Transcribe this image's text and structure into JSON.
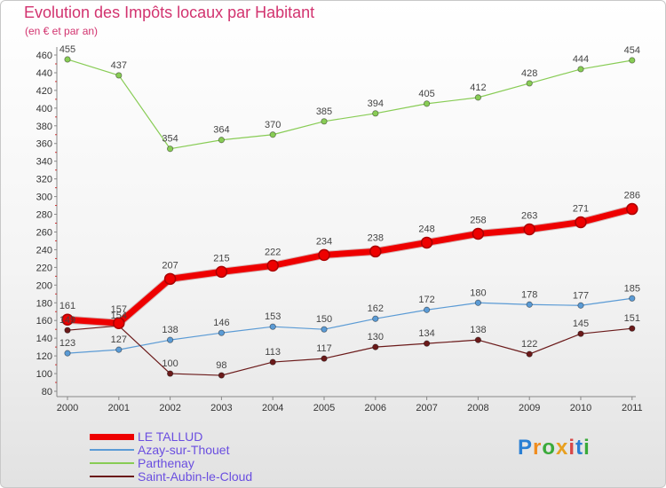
{
  "chart_data": {
    "type": "line",
    "title": "Evolution des Impôts locaux par Habitant",
    "subtitle": "(en € et par an)",
    "xlabel": "",
    "ylabel": "",
    "x": [
      "2000",
      "2001",
      "2002",
      "2003",
      "2004",
      "2005",
      "2006",
      "2007",
      "2008",
      "2009",
      "2010",
      "2011"
    ],
    "ylim": [
      80,
      460
    ],
    "ytick_step": 20,
    "grid": false,
    "legend_position": "bottom-left",
    "series": [
      {
        "name": "LE TALLUD",
        "color": "#ee0000",
        "emphasis": true,
        "values": [
          161,
          157,
          207,
          215,
          222,
          234,
          238,
          248,
          258,
          263,
          271,
          286
        ]
      },
      {
        "name": "Azay-sur-Thouet",
        "color": "#5b9bd5",
        "values": [
          123,
          127,
          138,
          146,
          153,
          150,
          162,
          172,
          180,
          178,
          177,
          185
        ]
      },
      {
        "name": "Parthenay",
        "color": "#88cc55",
        "values": [
          455,
          437,
          354,
          364,
          370,
          385,
          394,
          405,
          412,
          428,
          444,
          454
        ]
      },
      {
        "name": "Saint-Aubin-le-Cloud",
        "color": "#6b1a1a",
        "values": [
          149,
          154,
          100,
          98,
          113,
          117,
          130,
          134,
          138,
          122,
          145,
          151
        ]
      }
    ]
  },
  "logo": {
    "letters": [
      "P",
      "r",
      "o",
      "x",
      "i",
      "t",
      "i"
    ],
    "colors": [
      "#2a7fd4",
      "#f08c1e",
      "#3aaa3a",
      "#e8a020",
      "#d84848",
      "#2a7fd4",
      "#3aaa3a"
    ]
  }
}
